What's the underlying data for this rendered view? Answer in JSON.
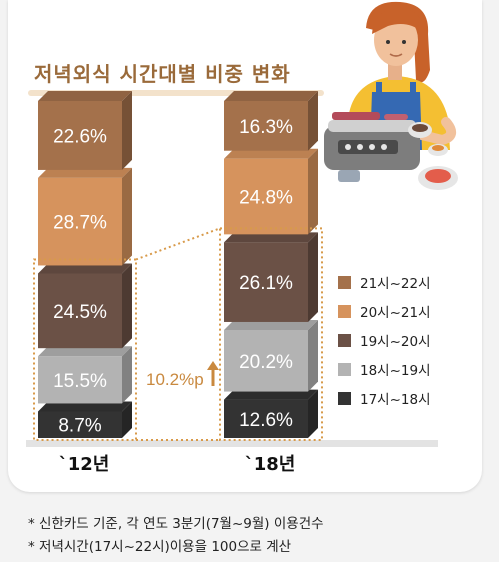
{
  "title": "저녁외식 시간대별 비중 변화",
  "chart_data": {
    "type": "bar",
    "stacked": true,
    "categories": [
      "`12년",
      "`18년"
    ],
    "series": [
      {
        "name": "17시~18시",
        "color": "#333333",
        "values": [
          8.7,
          12.6
        ]
      },
      {
        "name": "18시~19시",
        "color": "#b3b3b3",
        "values": [
          15.5,
          20.2
        ]
      },
      {
        "name": "19시~20시",
        "color": "#6b5146",
        "values": [
          24.5,
          26.1
        ]
      },
      {
        "name": "20시~21시",
        "color": "#d6935d",
        "values": [
          28.7,
          24.8
        ]
      },
      {
        "name": "21시~22시",
        "color": "#a4714b",
        "values": [
          22.6,
          16.3
        ]
      }
    ],
    "value_suffix": "%",
    "legend_position": "right",
    "legend_order": [
      "21시~22시",
      "20시~21시",
      "19시~20시",
      "18시~19시",
      "17시~18시"
    ],
    "annotation": {
      "text": "10.2%p",
      "direction": "up"
    }
  },
  "footnotes": [
    "* 신한카드 기준, 각 연도 3분기(7월~9월) 이용건수",
    "* 저녁시간(17시~22시)이용을 100으로 계산"
  ],
  "illustration": {
    "icon": "woman-cooking-at-grill"
  }
}
